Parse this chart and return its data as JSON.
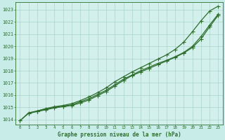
{
  "title": "Graphe pression niveau de la mer (hPa)",
  "bg_color": "#c8ede8",
  "plot_bg_color": "#d4f0ec",
  "grid_color": "#aad4cc",
  "line_color": "#2d6e2d",
  "xlim_min": -0.5,
  "xlim_max": 23.5,
  "ylim_min": 1013.6,
  "ylim_max": 1023.6,
  "yticks": [
    1014,
    1015,
    1016,
    1017,
    1018,
    1019,
    1020,
    1021,
    1022,
    1023
  ],
  "xticks": [
    0,
    1,
    2,
    3,
    4,
    5,
    6,
    7,
    8,
    9,
    10,
    11,
    12,
    13,
    14,
    15,
    16,
    17,
    18,
    19,
    20,
    21,
    22,
    23
  ],
  "line1_x": [
    0,
    1,
    2,
    3,
    4,
    5,
    6,
    7,
    8,
    9,
    10,
    11,
    12,
    13,
    14,
    15,
    16,
    17,
    18,
    19,
    20,
    21,
    22,
    23
  ],
  "line1_y": [
    1013.9,
    1014.5,
    1014.65,
    1014.8,
    1014.95,
    1015.05,
    1015.15,
    1015.35,
    1015.6,
    1015.95,
    1016.3,
    1016.75,
    1017.2,
    1017.6,
    1017.9,
    1018.2,
    1018.5,
    1018.8,
    1019.1,
    1019.45,
    1019.9,
    1020.6,
    1021.6,
    1022.55
  ],
  "line2_x": [
    0,
    1,
    2,
    3,
    4,
    5,
    6,
    7,
    8,
    9,
    10,
    11,
    12,
    13,
    14,
    15,
    16,
    17,
    18,
    19,
    20,
    21,
    22,
    23
  ],
  "line2_y": [
    1013.9,
    1014.55,
    1014.7,
    1014.85,
    1015.0,
    1015.1,
    1015.2,
    1015.45,
    1015.7,
    1016.05,
    1016.4,
    1016.85,
    1017.3,
    1017.65,
    1018.0,
    1018.3,
    1018.6,
    1018.85,
    1019.15,
    1019.5,
    1020.0,
    1020.8,
    1021.75,
    1022.65
  ],
  "line3_x": [
    1,
    2,
    3,
    4,
    5,
    6,
    7,
    8,
    9,
    10,
    11,
    12,
    13,
    14,
    15,
    16,
    17,
    18,
    19,
    20,
    21,
    22,
    23
  ],
  "line3_y": [
    1014.5,
    1014.7,
    1014.9,
    1015.05,
    1015.15,
    1015.3,
    1015.55,
    1015.85,
    1016.2,
    1016.6,
    1017.1,
    1017.5,
    1017.9,
    1018.25,
    1018.6,
    1018.95,
    1019.3,
    1019.75,
    1020.35,
    1021.2,
    1022.1,
    1022.9,
    1023.3
  ]
}
